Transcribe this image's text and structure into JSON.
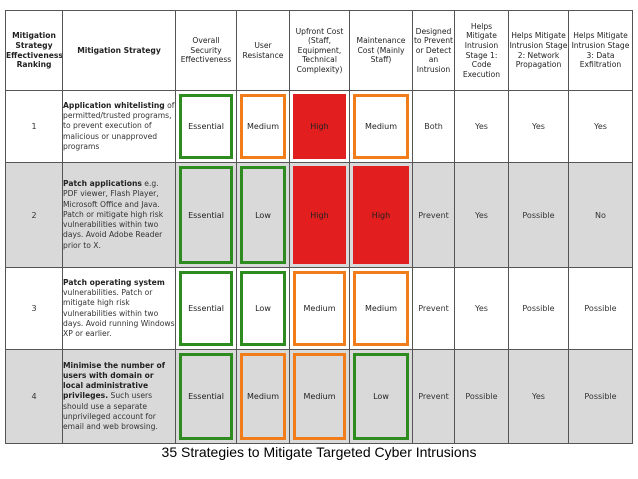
{
  "headers": [
    "Mitigation Strategy Effectiveness Ranking",
    "Mitigation Strategy",
    "Overall Security Effectiveness",
    "User Resistance",
    "Upfront Cost (Staff, Equipment, Technical Complexity)",
    "Maintenance Cost (Mainly Staff)",
    "Designed to Prevent or Detect an Intrusion",
    "Helps Mitigate Intrusion Stage 1: Code Execution",
    "Helps Mitigate Intrusion Stage 2: Network Propagation",
    "Helps Mitigate Intrusion Stage 3: Data Exfiltration"
  ],
  "rows": [
    {
      "rank": "1",
      "strategy_bold": "Application whitelisting",
      "strategy_rest": "of permitted/trusted programs, to prevent execution of malicious or unapproved programs",
      "overall": "Essential",
      "resistance": "Medium",
      "upfront": "High",
      "maintenance": "Medium",
      "designed": "Both",
      "stage1": "Yes",
      "stage2": "Yes",
      "stage3": "Yes"
    },
    {
      "rank": "2",
      "strategy_bold": "Patch applications",
      "strategy_rest": "e.g. PDF viewer, Flash Player, Microsoft Office and Java. Patch or mitigate high risk vulnerabilities within two days. Avoid Adobe Reader prior to X.",
      "overall": "Essential",
      "resistance": "Low",
      "upfront": "High",
      "maintenance": "High",
      "designed": "Prevent",
      "stage1": "Yes",
      "stage2": "Possible",
      "stage3": "No"
    },
    {
      "rank": "3",
      "strategy_bold": "Patch operating system",
      "strategy_rest": "vulnerabilities. Patch or mitigate high risk vulnerabilities within two days. Avoid running Windows XP or earlier.",
      "overall": "Essential",
      "resistance": "Low",
      "upfront": "Medium",
      "maintenance": "Medium",
      "designed": "Prevent",
      "stage1": "Yes",
      "stage2": "Possible",
      "stage3": "Possible"
    },
    {
      "rank": "4",
      "strategy_bold": "Minimise the number of users with domain or local administrative privileges.",
      "strategy_rest": "Such users should use a separate unprivileged account for email and web browsing.",
      "overall": "Essential",
      "resistance": "Medium",
      "upfront": "Medium",
      "maintenance": "Low",
      "designed": "Prevent",
      "stage1": "Possible",
      "stage2": "Yes",
      "stage3": "Possible"
    }
  ],
  "caption": "35 Strategies to Mitigate Targeted Cyber Intrusions",
  "colors": {
    "green": "#2e8b1f",
    "orange": "#f07d1a",
    "red": "#e31e1e",
    "row_alt": "#d9d9d9"
  }
}
